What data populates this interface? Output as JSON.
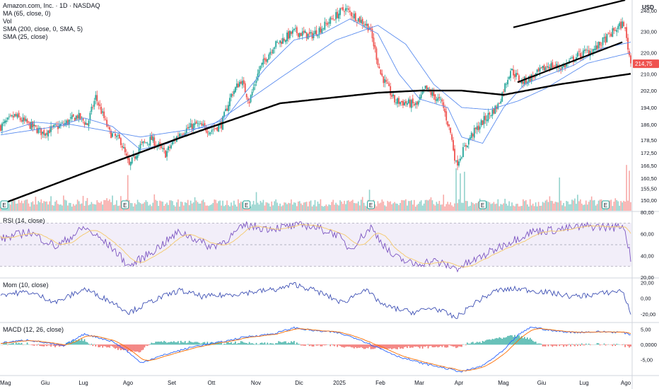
{
  "header": {
    "title": "Amazon.com, Inc. · 1D · NASDAQ",
    "ma_label": "MA (65, close, 0)",
    "vol_label": "Vol",
    "sma200_label": "SMA (200, close, 0, SMA, 5)",
    "sma25_label": "SMA (25, close)",
    "currency": "USD"
  },
  "price_panel": {
    "last_price_tag": "214,75",
    "last_price": 214.75,
    "y_ticks": [
      "240,00",
      "230,00",
      "220,00",
      "210,00",
      "202,00",
      "194,00",
      "186,00",
      "178,50",
      "172,50",
      "166,50",
      "160,50",
      "155,50",
      "150,00"
    ],
    "earnings_marker": "E"
  },
  "rsi_panel": {
    "label": "RSI (14, close)",
    "y_ticks": [
      "80,00",
      "60,00",
      "40,00",
      "20,00"
    ]
  },
  "mom_panel": {
    "label": "Mom (10, close)",
    "y_ticks": [
      "20,00",
      "0,00",
      "-20,00"
    ]
  },
  "macd_panel": {
    "label": "MACD (12, 26, close)",
    "y_ticks": [
      "5,00",
      "0,0000",
      "-5,00"
    ]
  },
  "x_axis": {
    "labels": [
      "Mag",
      "Giu",
      "Lug",
      "Ago",
      "Set",
      "Ott",
      "Nov",
      "Dic",
      "2025",
      "Feb",
      "Mar",
      "Apr",
      "Mag",
      "Giu",
      "Lug",
      "Ago"
    ]
  },
  "colors": {
    "up": "#26a69a",
    "down": "#ef5350",
    "vol_up": "#92d2cc",
    "vol_down": "#f7a9a7",
    "sma200": "#000000",
    "ma65": "#5b8def",
    "sma25": "#5b8def",
    "rsi": "#7e57c2",
    "rsi_ma": "#f5c96a",
    "mom": "#3f51b5",
    "macd": "#2962ff",
    "signal": "#ff6d00",
    "price_tag": "#ef5350"
  },
  "chart_data": {
    "type": "candlestick",
    "price_anchors": [
      [
        0,
        185
      ],
      [
        10,
        190
      ],
      [
        20,
        186
      ],
      [
        30,
        182
      ],
      [
        45,
        186
      ],
      [
        55,
        190
      ],
      [
        62,
        186
      ],
      [
        68,
        199
      ],
      [
        78,
        182
      ],
      [
        86,
        178
      ],
      [
        92,
        166
      ],
      [
        100,
        176
      ],
      [
        108,
        179
      ],
      [
        118,
        172
      ],
      [
        128,
        182
      ],
      [
        140,
        186
      ],
      [
        150,
        183
      ],
      [
        158,
        186
      ],
      [
        165,
        200
      ],
      [
        172,
        207
      ],
      [
        178,
        197
      ],
      [
        185,
        212
      ],
      [
        195,
        223
      ],
      [
        210,
        230
      ],
      [
        222,
        228
      ],
      [
        232,
        233
      ],
      [
        246,
        241
      ],
      [
        256,
        236
      ],
      [
        264,
        232
      ],
      [
        272,
        210
      ],
      [
        282,
        197
      ],
      [
        292,
        196
      ],
      [
        298,
        195
      ],
      [
        304,
        203
      ],
      [
        316,
        196
      ],
      [
        322,
        182
      ],
      [
        326,
        167
      ],
      [
        336,
        180
      ],
      [
        346,
        188
      ],
      [
        356,
        195
      ],
      [
        365,
        212
      ],
      [
        373,
        206
      ],
      [
        382,
        209
      ],
      [
        392,
        214
      ],
      [
        402,
        213
      ],
      [
        414,
        219
      ],
      [
        426,
        222
      ],
      [
        440,
        231
      ],
      [
        446,
        234
      ],
      [
        451,
        215
      ]
    ],
    "sma200_anchors": [
      [
        0,
        148
      ],
      [
        60,
        163
      ],
      [
        130,
        180
      ],
      [
        200,
        196
      ],
      [
        270,
        201
      ],
      [
        300,
        202
      ],
      [
        330,
        202
      ],
      [
        360,
        200
      ],
      [
        400,
        205
      ],
      [
        451,
        210
      ]
    ],
    "ma65_anchors": [
      [
        0,
        181
      ],
      [
        50,
        186
      ],
      [
        100,
        180
      ],
      [
        150,
        185
      ],
      [
        200,
        208
      ],
      [
        240,
        226
      ],
      [
        270,
        233
      ],
      [
        290,
        224
      ],
      [
        310,
        205
      ],
      [
        330,
        194
      ],
      [
        350,
        193
      ],
      [
        370,
        197
      ],
      [
        390,
        203
      ],
      [
        420,
        215
      ],
      [
        451,
        220
      ]
    ],
    "sma25_anchors": [
      [
        0,
        182
      ],
      [
        25,
        187
      ],
      [
        45,
        186
      ],
      [
        60,
        189
      ],
      [
        80,
        185
      ],
      [
        100,
        174
      ],
      [
        120,
        177
      ],
      [
        140,
        184
      ],
      [
        160,
        188
      ],
      [
        175,
        201
      ],
      [
        190,
        213
      ],
      [
        210,
        226
      ],
      [
        230,
        229
      ],
      [
        250,
        236
      ],
      [
        270,
        229
      ],
      [
        285,
        210
      ],
      [
        300,
        198
      ],
      [
        320,
        194
      ],
      [
        330,
        180
      ],
      [
        345,
        177
      ],
      [
        360,
        194
      ],
      [
        375,
        205
      ],
      [
        390,
        209
      ],
      [
        410,
        214
      ],
      [
        430,
        222
      ],
      [
        451,
        225
      ]
    ],
    "rsi_anchors": [
      [
        0,
        55
      ],
      [
        20,
        62
      ],
      [
        40,
        48
      ],
      [
        60,
        66
      ],
      [
        80,
        47
      ],
      [
        92,
        30
      ],
      [
        110,
        45
      ],
      [
        128,
        62
      ],
      [
        140,
        55
      ],
      [
        150,
        48
      ],
      [
        160,
        53
      ],
      [
        175,
        68
      ],
      [
        190,
        65
      ],
      [
        210,
        67
      ],
      [
        220,
        68
      ],
      [
        240,
        60
      ],
      [
        250,
        46
      ],
      [
        265,
        66
      ],
      [
        280,
        40
      ],
      [
        295,
        32
      ],
      [
        310,
        35
      ],
      [
        326,
        28
      ],
      [
        340,
        36
      ],
      [
        360,
        50
      ],
      [
        380,
        62
      ],
      [
        400,
        64
      ],
      [
        420,
        67
      ],
      [
        440,
        66
      ],
      [
        446,
        68
      ],
      [
        451,
        38
      ]
    ],
    "mom_anchors": [
      [
        0,
        5
      ],
      [
        20,
        8
      ],
      [
        40,
        -5
      ],
      [
        60,
        12
      ],
      [
        80,
        -5
      ],
      [
        92,
        -18
      ],
      [
        110,
        -2
      ],
      [
        128,
        10
      ],
      [
        145,
        2
      ],
      [
        160,
        4
      ],
      [
        180,
        8
      ],
      [
        200,
        12
      ],
      [
        210,
        18
      ],
      [
        225,
        10
      ],
      [
        245,
        -6
      ],
      [
        260,
        12
      ],
      [
        275,
        -10
      ],
      [
        295,
        -18
      ],
      [
        310,
        -12
      ],
      [
        326,
        -25
      ],
      [
        340,
        -5
      ],
      [
        355,
        10
      ],
      [
        370,
        12
      ],
      [
        390,
        8
      ],
      [
        410,
        2
      ],
      [
        430,
        6
      ],
      [
        445,
        10
      ],
      [
        451,
        -20
      ]
    ],
    "macd_anchors": [
      [
        0,
        0.5
      ],
      [
        20,
        1.5
      ],
      [
        45,
        -0.5
      ],
      [
        60,
        3.5
      ],
      [
        80,
        1
      ],
      [
        90,
        -2
      ],
      [
        100,
        -6
      ],
      [
        120,
        -3
      ],
      [
        140,
        -0.5
      ],
      [
        160,
        1
      ],
      [
        175,
        2.5
      ],
      [
        195,
        3.5
      ],
      [
        210,
        5.5
      ],
      [
        225,
        4.5
      ],
      [
        240,
        4
      ],
      [
        255,
        2
      ],
      [
        270,
        -1
      ],
      [
        285,
        -4
      ],
      [
        300,
        -6
      ],
      [
        320,
        -8
      ],
      [
        330,
        -9
      ],
      [
        345,
        -7
      ],
      [
        360,
        -2
      ],
      [
        370,
        3
      ],
      [
        380,
        5.8
      ],
      [
        395,
        4.5
      ],
      [
        410,
        4
      ],
      [
        430,
        4.2
      ],
      [
        445,
        4
      ],
      [
        451,
        3.2
      ]
    ],
    "earnings_bar_indexes": [
      0,
      89,
      176,
      265,
      345,
      433
    ],
    "volume_spikes": [
      [
        91,
        105
      ],
      [
        326,
        125
      ],
      [
        329,
        110
      ],
      [
        332,
        115
      ],
      [
        264,
        62
      ],
      [
        183,
        55
      ],
      [
        400,
        98
      ],
      [
        448,
        135
      ],
      [
        450,
        118
      ]
    ],
    "channel_upper": [
      [
        367,
        232
      ],
      [
        447,
        245
      ]
    ],
    "channel_lower": [
      [
        370,
        206
      ],
      [
        445,
        225
      ]
    ],
    "y_ranges": {
      "price": [
        145,
        245
      ],
      "rsi": [
        20,
        80
      ],
      "mom": [
        -30,
        25
      ],
      "macd": [
        -10,
        7
      ]
    },
    "bars": 452
  }
}
